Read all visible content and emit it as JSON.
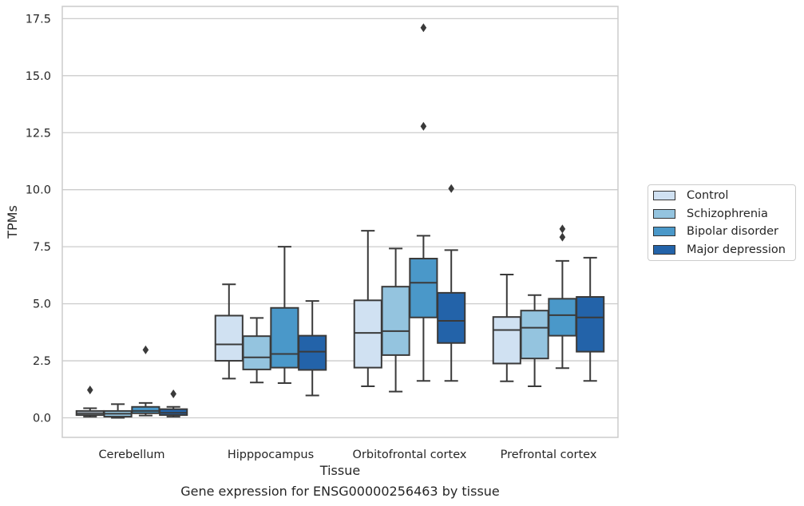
{
  "chart_data": {
    "type": "boxplot",
    "title": "Gene expression for ENSG00000256463 by tissue",
    "xlabel": "Tissue",
    "ylabel": "TPMs",
    "ylim": [
      -0.85,
      18.0
    ],
    "yticks": [
      "0.0",
      "2.5",
      "5.0",
      "7.5",
      "10.0",
      "12.5",
      "15.0",
      "17.5"
    ],
    "grid": "horizontal",
    "legend_position": "right",
    "categories": [
      "Cerebellum",
      "Hipppocampus",
      "Orbitofrontal cortex",
      "Prefrontal cortex"
    ],
    "series": [
      {
        "name": "Control",
        "color": "#d0e1f2",
        "boxes": [
          {
            "whislo": 0.05,
            "q1": 0.12,
            "med": 0.2,
            "q3": 0.3,
            "whishi": 0.42,
            "fliers": [
              1.22
            ]
          },
          {
            "whislo": 1.72,
            "q1": 2.5,
            "med": 3.22,
            "q3": 4.48,
            "whishi": 5.85,
            "fliers": []
          },
          {
            "whislo": 1.38,
            "q1": 2.2,
            "med": 3.72,
            "q3": 5.15,
            "whishi": 8.2,
            "fliers": []
          },
          {
            "whislo": 1.6,
            "q1": 2.38,
            "med": 3.85,
            "q3": 4.42,
            "whishi": 6.28,
            "fliers": []
          }
        ]
      },
      {
        "name": "Schizophrenia",
        "color": "#94c4df",
        "boxes": [
          {
            "whislo": 0.0,
            "q1": 0.05,
            "med": 0.18,
            "q3": 0.3,
            "whishi": 0.6,
            "fliers": []
          },
          {
            "whislo": 1.55,
            "q1": 2.12,
            "med": 2.65,
            "q3": 3.58,
            "whishi": 4.38,
            "fliers": []
          },
          {
            "whislo": 1.15,
            "q1": 2.75,
            "med": 3.8,
            "q3": 5.75,
            "whishi": 7.42,
            "fliers": []
          },
          {
            "whislo": 1.38,
            "q1": 2.6,
            "med": 3.95,
            "q3": 4.7,
            "whishi": 5.38,
            "fliers": []
          }
        ]
      },
      {
        "name": "Bipolar disorder",
        "color": "#4a98c9",
        "boxes": [
          {
            "whislo": 0.1,
            "q1": 0.2,
            "med": 0.3,
            "q3": 0.48,
            "whishi": 0.65,
            "fliers": [
              2.98
            ]
          },
          {
            "whislo": 1.52,
            "q1": 2.2,
            "med": 2.8,
            "q3": 4.82,
            "whishi": 7.5,
            "fliers": []
          },
          {
            "whislo": 1.62,
            "q1": 4.4,
            "med": 5.92,
            "q3": 6.98,
            "whishi": 7.98,
            "fliers": [
              17.1,
              12.78
            ]
          },
          {
            "whislo": 2.18,
            "q1": 3.6,
            "med": 4.5,
            "q3": 5.22,
            "whishi": 6.88,
            "fliers": [
              8.28,
              7.92
            ]
          }
        ]
      },
      {
        "name": "Major depression",
        "color": "#2363a9",
        "boxes": [
          {
            "whislo": 0.05,
            "q1": 0.12,
            "med": 0.22,
            "q3": 0.38,
            "whishi": 0.48,
            "fliers": [
              1.05
            ]
          },
          {
            "whislo": 0.98,
            "q1": 2.1,
            "med": 2.9,
            "q3": 3.6,
            "whishi": 5.12,
            "fliers": []
          },
          {
            "whislo": 1.62,
            "q1": 3.28,
            "med": 4.25,
            "q3": 5.48,
            "whishi": 7.35,
            "fliers": [
              10.05
            ]
          },
          {
            "whislo": 1.62,
            "q1": 2.9,
            "med": 4.4,
            "q3": 5.3,
            "whishi": 7.02,
            "fliers": []
          }
        ]
      }
    ]
  }
}
